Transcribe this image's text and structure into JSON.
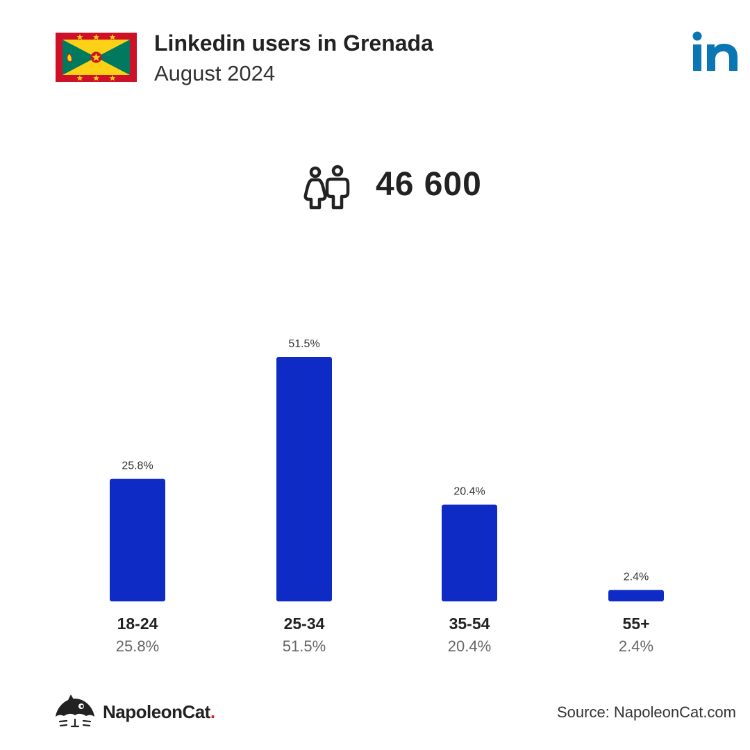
{
  "header": {
    "title": "Linkedin users in Grenada",
    "subtitle": "August 2024"
  },
  "total_users": "46 600",
  "icons": {
    "flag": "grenada-flag",
    "network": "linkedin-logo",
    "users": "users-icon",
    "brand": "napoleoncat-logo"
  },
  "colors": {
    "bar": "#0f2bc6",
    "linkedin": "#0a76b4",
    "flag_red": "#ce1126",
    "flag_green": "#00795f",
    "flag_yellow": "#fcd116"
  },
  "chart_data": {
    "type": "bar",
    "categories": [
      "18-24",
      "25-34",
      "35-54",
      "55+"
    ],
    "values": [
      25.8,
      51.5,
      20.4,
      2.4
    ],
    "value_labels": [
      "25.8%",
      "51.5%",
      "20.4%",
      "2.4%"
    ],
    "unit": "%",
    "ylim": [
      0,
      51.5
    ],
    "grid": false,
    "legend": "none"
  },
  "footer": {
    "brand_name": "NapoleonCat",
    "brand_dot": ".",
    "source": "Source: NapoleonCat.com"
  }
}
